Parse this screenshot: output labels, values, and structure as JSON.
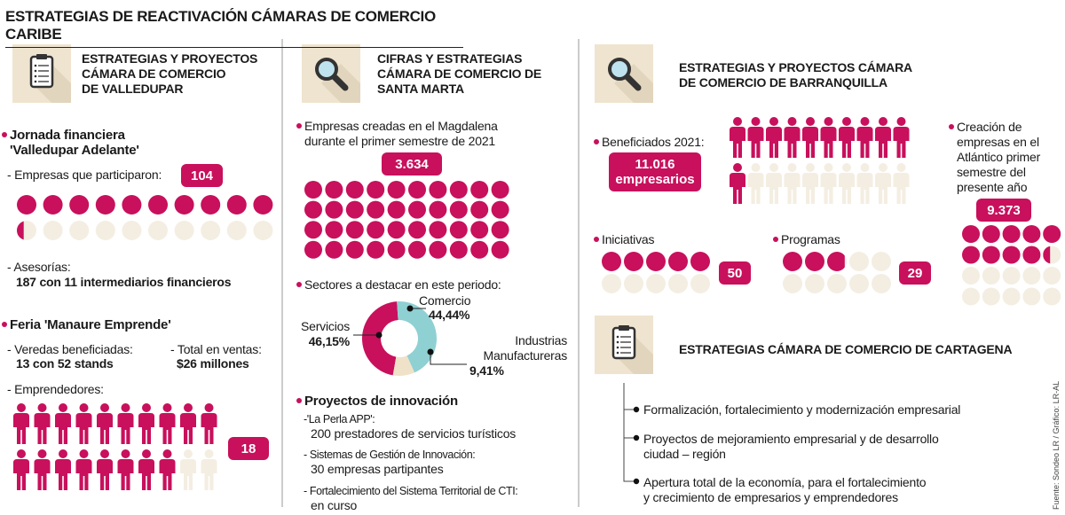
{
  "title": "ESTRATEGIAS DE REACTIVACIÓN CÁMARAS DE COMERCIO CARIBE",
  "source": "Fuente: Sondeo LR / Gráfico: LR-AL",
  "valledupar": {
    "heading": [
      "ESTRATEGIAS Y PROYECTOS",
      "CÁMARA DE COMERCIO",
      "DE VALLEDUPAR"
    ],
    "jornada": [
      "Jornada financiera",
      "'Valledupar Adelante'"
    ],
    "empresas_label": "- Empresas que participaron:",
    "empresas_value": "104",
    "asesorias_label": "- Asesorías:",
    "asesorias_value": "187 con 11 intermediarios financieros",
    "feria": "Feria 'Manaure Emprende'",
    "veredas_label": "- Veredas beneficiadas:",
    "veredas_value": "13 con 52 stands",
    "ventas_label": "- Total en ventas:",
    "ventas_value": "$26 millones",
    "emprendedores_label": "- Emprendedores:",
    "emprendedores_value": "18"
  },
  "santa_marta": {
    "heading": [
      "CIFRAS Y ESTRATEGIAS",
      "CÁMARA DE COMERCIO DE",
      "SANTA MARTA"
    ],
    "empresas_label": [
      "Empresas creadas en el Magdalena",
      "durante el primer semestre de 2021"
    ],
    "empresas_value": "3.634",
    "proyectos_label": "Proyectos de innovación",
    "proyectos": [
      {
        "name": "-'La Perla APP':",
        "detail": "200 prestadores de servicios turísticos"
      },
      {
        "name": "- Sistemas de Gestión de Innovación:",
        "detail": "30 empresas partipantes"
      },
      {
        "name": "- Fortalecimiento del Sistema Territorial de CTI:",
        "detail": "en curso"
      }
    ]
  },
  "chart_data": {
    "type": "pie",
    "title": "Sectores a destacar en este periodo:",
    "categories": [
      "Servicios",
      "Comercio",
      "Industrias Manufactureras"
    ],
    "values": [
      46.15,
      44.44,
      9.41
    ],
    "value_labels": [
      "46,15%",
      "44,44%",
      "9,41%"
    ],
    "colors": [
      "#c8105c",
      "#8fd0d3",
      "#efe2c8"
    ]
  },
  "barranquilla": {
    "heading": [
      "ESTRATEGIAS Y PROYECTOS CÁMARA",
      "DE COMERCIO DE BARRANQUILLA"
    ],
    "beneficiados_label": "Beneficiados 2021:",
    "beneficiados_value": [
      "11.016",
      "empresarios"
    ],
    "creacion_label": [
      "Creación de",
      "empresas en el",
      "Atlántico primer",
      "semestre del",
      "presente año"
    ],
    "creacion_value": "9.373",
    "iniciativas_label": "Iniciativas",
    "iniciativas_value": "50",
    "programas_label": "Programas",
    "programas_value": "29"
  },
  "cartagena": {
    "heading": "ESTRATEGIAS CÁMARA DE COMERCIO DE CARTAGENA",
    "items": [
      [
        "Formalización, fortalecimiento y modernización empresarial"
      ],
      [
        "Proyectos de mejoramiento empresarial y de desarrollo",
        "ciudad – región"
      ],
      [
        "Apertura total de la economía, para el fortalecimiento",
        "y crecimiento de empresarios y emprendedores"
      ]
    ]
  }
}
